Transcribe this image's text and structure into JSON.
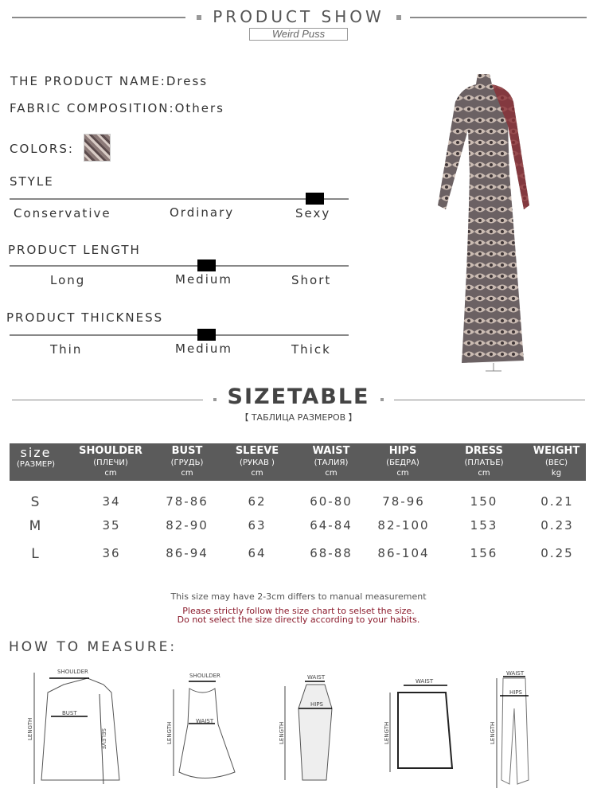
{
  "header": {
    "title": "PRODUCT SHOW",
    "brand": "Weird Puss"
  },
  "product": {
    "name": "THE PRODUCT NAME:Dress",
    "fabric_label": "FABRIC COMPOSITION:",
    "fabric_value": "Others",
    "colors_label": "COLORS:"
  },
  "scales": [
    {
      "title": "STYLE",
      "options": [
        "Conservative",
        "Ordinary",
        "Sexy"
      ],
      "selected": "Sexy"
    },
    {
      "title": "PRODUCT LENGTH",
      "options": [
        "Long",
        "Medium",
        "Short"
      ],
      "selected": "Medium"
    },
    {
      "title": "PRODUCT THICKNESS",
      "options": [
        "Thin",
        "Medium",
        "Thick"
      ],
      "selected": "Medium"
    }
  ],
  "sizetable": {
    "title": "SIZETABLE",
    "subtitle": "【 ТАБЛИЦА РАЗМЕРОВ 】",
    "columns": [
      {
        "name": "size",
        "ru": "(РАЗМЕР)",
        "unit": ""
      },
      {
        "name": "SHOULDER",
        "ru": "(ПЛЕЧИ)",
        "unit": "cm"
      },
      {
        "name": "BUST",
        "ru": "(ГРУДЬ)",
        "unit": "cm"
      },
      {
        "name": "SLEEVE",
        "ru": "(РУКАВ )",
        "unit": "cm"
      },
      {
        "name": "WAIST",
        "ru": "(ТАЛИЯ)",
        "unit": "cm"
      },
      {
        "name": "HIPS",
        "ru": "(БЕДРА)",
        "unit": "cm"
      },
      {
        "name": "DRESS",
        "ru": "(ПЛАТЬЕ)",
        "unit": "cm"
      },
      {
        "name": "WEIGHT",
        "ru": "(ВЕС)",
        "unit": "kg"
      }
    ],
    "rows": [
      [
        "S",
        "34",
        "78-86",
        "62",
        "60-80",
        "78-96",
        "150",
        "0.21"
      ],
      [
        "M",
        "35",
        "82-90",
        "63",
        "64-84",
        "82-100",
        "153",
        "0.23"
      ],
      [
        "L",
        "36",
        "86-94",
        "64",
        "68-88",
        "86-104",
        "156",
        "0.25"
      ]
    ]
  },
  "notes": {
    "line1": "This size may have 2-3cm differs to manual measurement",
    "line2": "Please strictly follow the size chart to selset the size.",
    "line3": "Do not select the size directly according to your habits.",
    "warn_color": "#8b1a2b"
  },
  "how_to_measure": {
    "title": "HOW TO MEASURE:",
    "labels": {
      "shoulder": "SHOULDER",
      "bust": "BUST",
      "waist": "WAIST",
      "hips": "HIPS",
      "length": "LENGTH",
      "sleeve": "SELEVE"
    }
  }
}
